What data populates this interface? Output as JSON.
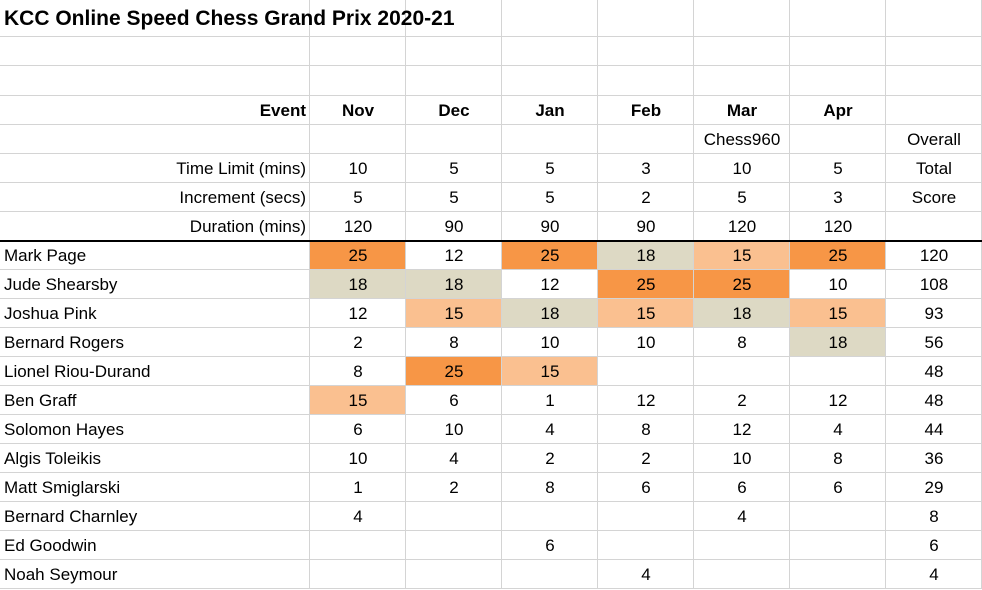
{
  "title": "KCC Online Speed Chess Grand Prix 2020-21",
  "header": {
    "event_label": "Event",
    "events": [
      "Nov",
      "Dec",
      "Jan",
      "Feb",
      "Mar",
      "Apr"
    ],
    "notes": [
      null,
      null,
      null,
      null,
      "Chess960",
      null
    ],
    "overall_label": [
      "Overall",
      "Total",
      "Score"
    ],
    "settings": [
      {
        "label": "Time Limit (mins)",
        "values": [
          10,
          5,
          5,
          3,
          10,
          5
        ]
      },
      {
        "label": "Increment (secs)",
        "values": [
          5,
          5,
          5,
          2,
          5,
          3
        ]
      },
      {
        "label": "Duration (mins)",
        "values": [
          120,
          90,
          90,
          90,
          120,
          120
        ]
      }
    ]
  },
  "players": [
    {
      "name": "Mark Page",
      "scores": [
        25,
        12,
        25,
        18,
        15,
        25
      ],
      "colors": [
        "#f79646",
        null,
        "#f79646",
        "#ddd9c4",
        "#fac090",
        "#f79646"
      ],
      "total": 120
    },
    {
      "name": "Jude Shearsby",
      "scores": [
        18,
        18,
        12,
        25,
        25,
        10
      ],
      "colors": [
        "#ddd9c4",
        "#ddd9c4",
        null,
        "#f79646",
        "#f79646",
        null
      ],
      "total": 108
    },
    {
      "name": "Joshua Pink",
      "scores": [
        12,
        15,
        18,
        15,
        18,
        15
      ],
      "colors": [
        null,
        "#fac090",
        "#ddd9c4",
        "#fac090",
        "#ddd9c4",
        "#fac090"
      ],
      "total": 93
    },
    {
      "name": "Bernard Rogers",
      "scores": [
        2,
        8,
        10,
        10,
        8,
        18
      ],
      "colors": [
        null,
        null,
        null,
        null,
        null,
        "#ddd9c4"
      ],
      "total": 56
    },
    {
      "name": "Lionel Riou-Durand",
      "scores": [
        8,
        25,
        15,
        null,
        null,
        null
      ],
      "colors": [
        null,
        "#f79646",
        "#fac090",
        null,
        null,
        null
      ],
      "total": 48
    },
    {
      "name": "Ben Graff",
      "scores": [
        15,
        6,
        1,
        12,
        2,
        12
      ],
      "colors": [
        "#fac090",
        null,
        null,
        null,
        null,
        null
      ],
      "total": 48
    },
    {
      "name": "Solomon Hayes",
      "scores": [
        6,
        10,
        4,
        8,
        12,
        4
      ],
      "colors": [
        null,
        null,
        null,
        null,
        null,
        null
      ],
      "total": 44
    },
    {
      "name": "Algis Toleikis",
      "scores": [
        10,
        4,
        2,
        2,
        10,
        8
      ],
      "colors": [
        null,
        null,
        null,
        null,
        null,
        null
      ],
      "total": 36
    },
    {
      "name": "Matt Smiglarski",
      "scores": [
        1,
        2,
        8,
        6,
        6,
        6
      ],
      "colors": [
        null,
        null,
        null,
        null,
        null,
        null
      ],
      "total": 29
    },
    {
      "name": "Bernard Charnley",
      "scores": [
        4,
        null,
        null,
        null,
        4,
        null
      ],
      "colors": [
        null,
        null,
        null,
        null,
        null,
        null
      ],
      "total": 8
    },
    {
      "name": "Ed Goodwin",
      "scores": [
        null,
        null,
        6,
        null,
        null,
        null
      ],
      "colors": [
        null,
        null,
        null,
        null,
        null,
        null
      ],
      "total": 6
    },
    {
      "name": "Noah Seymour",
      "scores": [
        null,
        null,
        null,
        4,
        null,
        null
      ],
      "colors": [
        null,
        null,
        null,
        null,
        null,
        null
      ],
      "total": 4
    }
  ]
}
